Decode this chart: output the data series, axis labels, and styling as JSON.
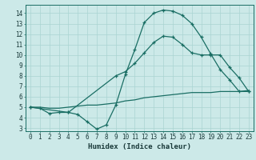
{
  "xlabel": "Humidex (Indice chaleur)",
  "xlim": [
    -0.5,
    23.5
  ],
  "ylim": [
    2.7,
    14.8
  ],
  "yticks": [
    3,
    4,
    5,
    6,
    7,
    8,
    9,
    10,
    11,
    12,
    13,
    14
  ],
  "xticks": [
    0,
    1,
    2,
    3,
    4,
    5,
    6,
    7,
    8,
    9,
    10,
    11,
    12,
    13,
    14,
    15,
    16,
    17,
    18,
    19,
    20,
    21,
    22,
    23
  ],
  "bg_color": "#cce9e8",
  "grid_color": "#aad4d2",
  "line_color": "#1a6e64",
  "line1_x": [
    0,
    1,
    2,
    3,
    4,
    5,
    6,
    7,
    8,
    9,
    10,
    11,
    12,
    13,
    14,
    15,
    16,
    17,
    18,
    19,
    20,
    21,
    22,
    23
  ],
  "line1_y": [
    5.0,
    4.9,
    4.4,
    4.5,
    4.5,
    4.3,
    3.6,
    2.9,
    3.3,
    5.2,
    8.1,
    10.5,
    13.1,
    14.0,
    14.3,
    14.2,
    13.8,
    13.0,
    11.7,
    10.1,
    8.6,
    7.6,
    6.5,
    6.5
  ],
  "line2_x": [
    0,
    4,
    9,
    10,
    11,
    12,
    13,
    14,
    15,
    16,
    17,
    18,
    19,
    20,
    21,
    22,
    23
  ],
  "line2_y": [
    5.0,
    4.5,
    8.0,
    8.4,
    9.2,
    10.2,
    11.2,
    11.8,
    11.7,
    11.0,
    10.2,
    10.0,
    10.0,
    10.0,
    8.8,
    7.8,
    6.5
  ],
  "line3_x": [
    0,
    1,
    2,
    3,
    4,
    5,
    6,
    7,
    8,
    9,
    10,
    11,
    12,
    13,
    14,
    15,
    16,
    17,
    18,
    19,
    20,
    21,
    22,
    23
  ],
  "line3_y": [
    5.0,
    5.0,
    4.9,
    4.9,
    5.0,
    5.1,
    5.2,
    5.2,
    5.3,
    5.4,
    5.6,
    5.7,
    5.9,
    6.0,
    6.1,
    6.2,
    6.3,
    6.4,
    6.4,
    6.4,
    6.5,
    6.5,
    6.5,
    6.6
  ]
}
